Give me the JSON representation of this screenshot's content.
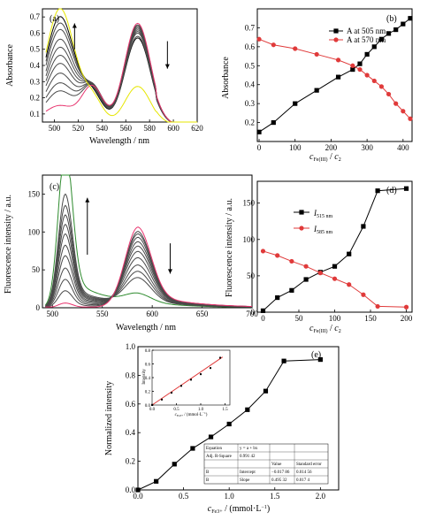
{
  "chart_data": [
    {
      "panel": "(a)",
      "type": "line",
      "xlabel": "Wavelength / nm",
      "ylabel": "Absorbance",
      "xlim": [
        490,
        620
      ],
      "ylim": [
        0.05,
        0.75
      ],
      "xticks": [
        500,
        520,
        540,
        560,
        580,
        600,
        620
      ],
      "yticks": [
        0.1,
        0.2,
        0.3,
        0.4,
        0.5,
        0.6,
        0.7
      ],
      "arrows": [
        {
          "x": 517,
          "direction": "up"
        },
        {
          "x": 595,
          "direction": "down"
        }
      ],
      "series": [
        {
          "color": "#000000",
          "peak505": 0.7,
          "peak570": 0.55,
          "h": 0.34,
          "base": 0.14
        },
        {
          "color": "#4a4a4a",
          "peak505": 0.66,
          "peak570": 0.56,
          "h": 0.36,
          "base": 0.14
        },
        {
          "color": "#4a4a4a",
          "peak505": 0.62,
          "peak570": 0.58,
          "h": 0.38,
          "base": 0.14
        },
        {
          "color": "#4a4a4a",
          "peak505": 0.56,
          "peak570": 0.59,
          "h": 0.4,
          "base": 0.14
        },
        {
          "color": "#4a4a4a",
          "peak505": 0.51,
          "peak570": 0.6,
          "h": 0.41,
          "base": 0.14
        },
        {
          "color": "#4a4a4a",
          "peak505": 0.46,
          "peak570": 0.61,
          "h": 0.42,
          "base": 0.14
        },
        {
          "color": "#4a4a4a",
          "peak505": 0.41,
          "peak570": 0.62,
          "h": 0.43,
          "base": 0.14
        },
        {
          "color": "#4a4a4a",
          "peak505": 0.35,
          "peak570": 0.62,
          "h": 0.43,
          "base": 0.14
        },
        {
          "color": "#4a4a4a",
          "peak505": 0.29,
          "peak570": 0.63,
          "h": 0.44,
          "base": 0.14
        },
        {
          "color": "#4a4a4a",
          "peak505": 0.24,
          "peak570": 0.63,
          "h": 0.44,
          "base": 0.14
        },
        {
          "color": "#e8356f",
          "peak505": 0.15,
          "peak570": 0.64,
          "h": 0.44,
          "base": 0.14
        },
        {
          "color": "#e6e600",
          "peak505": 0.75,
          "peak570": 0.25,
          "h": 0.3,
          "base": 0.14
        }
      ]
    },
    {
      "panel": "(b)",
      "type": "line",
      "xlabel": "c_Fe(III) / c_2",
      "ylabel": "Absorbance",
      "xlim": [
        -5,
        425
      ],
      "ylim": [
        0.1,
        0.8
      ],
      "xticks": [
        0,
        100,
        200,
        300,
        400
      ],
      "yticks": [
        0.2,
        0.3,
        0.4,
        0.5,
        0.6,
        0.7
      ],
      "legend_position": "top-right",
      "series": [
        {
          "name": "A at 505 nm",
          "color": "#000000",
          "marker": "square",
          "x": [
            0,
            40,
            100,
            160,
            220,
            260,
            280,
            300,
            320,
            340,
            360,
            380,
            400,
            420
          ],
          "y": [
            0.15,
            0.2,
            0.3,
            0.37,
            0.44,
            0.48,
            0.51,
            0.56,
            0.6,
            0.64,
            0.67,
            0.69,
            0.72,
            0.75
          ]
        },
        {
          "name": "A at 570 nm",
          "color": "#e03a3a",
          "marker": "circle",
          "x": [
            0,
            40,
            100,
            160,
            220,
            260,
            280,
            300,
            320,
            340,
            360,
            380,
            400,
            420
          ],
          "y": [
            0.64,
            0.61,
            0.59,
            0.56,
            0.53,
            0.5,
            0.48,
            0.45,
            0.42,
            0.39,
            0.35,
            0.3,
            0.26,
            0.22
          ]
        }
      ]
    },
    {
      "panel": "(c)",
      "type": "line",
      "xlabel": "Wavelength / nm",
      "ylabel": "Fluorescence intensity / a.u.",
      "xlim": [
        490,
        700
      ],
      "ylim": [
        0,
        175
      ],
      "xticks": [
        500,
        550,
        600,
        650,
        700
      ],
      "yticks": [
        0,
        50,
        100,
        150
      ],
      "arrows": [
        {
          "x": 535,
          "direction": "up"
        },
        {
          "x": 618,
          "direction": "down"
        }
      ],
      "series": [
        {
          "color": "#2e8b2e",
          "peak515": 170,
          "peak585": 10
        },
        {
          "color": "#4a4a4a",
          "peak515": 120,
          "peak585": 28
        },
        {
          "color": "#4a4a4a",
          "peak515": 108,
          "peak585": 35
        },
        {
          "color": "#4a4a4a",
          "peak515": 98,
          "peak585": 42
        },
        {
          "color": "#4a4a4a",
          "peak515": 88,
          "peak585": 50
        },
        {
          "color": "#4a4a4a",
          "peak515": 78,
          "peak585": 57
        },
        {
          "color": "#4a4a4a",
          "peak515": 66,
          "peak585": 63
        },
        {
          "color": "#4a4a4a",
          "peak515": 55,
          "peak585": 68
        },
        {
          "color": "#4a4a4a",
          "peak515": 42,
          "peak585": 73
        },
        {
          "color": "#4a4a4a",
          "peak515": 30,
          "peak585": 77
        },
        {
          "color": "#4a4a4a",
          "peak515": 18,
          "peak585": 80
        },
        {
          "color": "#e8356f",
          "peak515": 5,
          "peak585": 85
        }
      ]
    },
    {
      "panel": "(d)",
      "type": "line",
      "xlabel": "c_Fe(III) / c_2",
      "ylabel": "Fluorescence intensity / a.u.",
      "xlim": [
        -8,
        208
      ],
      "ylim": [
        0,
        180
      ],
      "xticks": [
        0,
        50,
        100,
        150,
        200
      ],
      "yticks": [
        0,
        50,
        100,
        150
      ],
      "legend_position": "top-left",
      "series": [
        {
          "name": "I_515 nm",
          "color": "#000000",
          "marker": "square",
          "x": [
            0,
            20,
            40,
            60,
            80,
            100,
            120,
            140,
            160,
            200
          ],
          "y": [
            2,
            20,
            30,
            45,
            55,
            63,
            80,
            118,
            167,
            170
          ]
        },
        {
          "name": "I_585 nm",
          "color": "#e03a3a",
          "marker": "circle",
          "x": [
            0,
            20,
            40,
            60,
            80,
            100,
            120,
            140,
            160,
            200
          ],
          "y": [
            84,
            78,
            70,
            63,
            54,
            46,
            38,
            24,
            8,
            7
          ]
        }
      ]
    },
    {
      "panel": "(e)",
      "type": "line",
      "xlabel": "c_Fe3+ / (mmol·L⁻¹)",
      "ylabel": "Normalized intensity",
      "xlim": [
        0,
        2.2
      ],
      "ylim": [
        0,
        1.0
      ],
      "xticks": [
        0.0,
        0.5,
        1.0,
        1.5,
        2.0
      ],
      "yticks": [
        0.0,
        0.2,
        0.4,
        0.6,
        0.8,
        1.0
      ],
      "series": [
        {
          "color": "#000000",
          "marker": "square",
          "x": [
            0.0,
            0.2,
            0.4,
            0.6,
            0.8,
            1.0,
            1.2,
            1.4,
            1.6,
            2.0
          ],
          "y": [
            0.0,
            0.06,
            0.18,
            0.29,
            0.37,
            0.46,
            0.56,
            0.69,
            0.9,
            0.91
          ]
        }
      ],
      "inset": {
        "xlabel": "c_Fe3+ / (mmol·L⁻¹)",
        "ylabel": "Intensity",
        "xlim": [
          0,
          1.6
        ],
        "ylim": [
          0,
          0.8
        ],
        "xticks": [
          0.0,
          0.5,
          1.0,
          1.5
        ],
        "yticks": [
          0.0,
          0.2,
          0.4,
          0.6,
          0.8
        ],
        "points": {
          "x": [
            0.0,
            0.2,
            0.4,
            0.6,
            0.8,
            1.0,
            1.2,
            1.4
          ],
          "y": [
            0.0,
            0.08,
            0.18,
            0.28,
            0.37,
            0.45,
            0.54,
            0.69
          ]
        },
        "fit": {
          "intercept": -0.01786,
          "slope": 0.49532,
          "color": "#e03a3a"
        }
      },
      "fit_table": {
        "rows": [
          [
            "Equation",
            "y = a + bx",
            "",
            ""
          ],
          [
            "Adj. R-Square",
            "0.991 42",
            "",
            ""
          ],
          [
            "",
            "",
            "Value",
            "Standard error"
          ],
          [
            "B",
            "Intercept",
            "−0.017 86",
            "0.014 56"
          ],
          [
            "B",
            "Slope",
            "0.495 32",
            "0.017 4"
          ]
        ]
      }
    }
  ],
  "labels": {
    "a_panel": "(a)",
    "b_panel": "(b)",
    "c_panel": "(c)",
    "d_panel": "(d)",
    "e_panel": "(e)",
    "a_xlabel": "Wavelength / nm",
    "a_ylabel": "Absorbance",
    "b_ylabel": "Absorbance",
    "b_leg1": "A at 505 nm",
    "b_leg2": "A at 570 nm",
    "c_xlabel": "Wavelength / nm",
    "c_ylabel": "Fluorescence intensity / a.u.",
    "d_ylabel": "Fluorescence intensity / a.u.",
    "e_ylabel": "Normalized intensity",
    "inset_ylabel": "Intensity"
  }
}
